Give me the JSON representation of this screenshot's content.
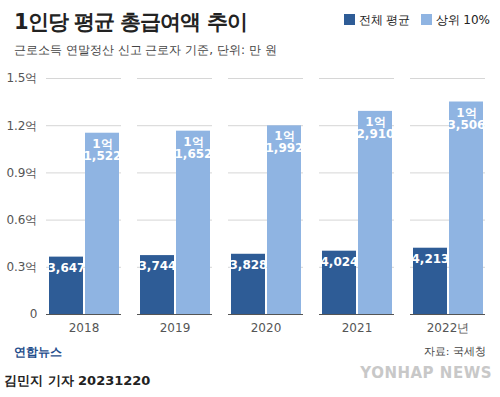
{
  "chart_data": {
    "type": "bar",
    "title": "1인당 평균 총급여액 추이",
    "subtitle": "근로소득 연말정산 신고 근로자 기준, 단위: 만 원",
    "categories": [
      "2018",
      "2019",
      "2020",
      "2021",
      "2022년"
    ],
    "series": [
      {
        "name": "전체 평균",
        "color": "#2e5c96",
        "values": [
          3647,
          3744,
          3828,
          4024,
          4213
        ],
        "value_labels": [
          "3,647",
          "3,744",
          "3,828",
          "4,024",
          "4,213"
        ]
      },
      {
        "name": "상위 10%",
        "color": "#8fb4e2",
        "values": [
          11522,
          11652,
          11992,
          12910,
          13506
        ],
        "value_labels": [
          "1억\n1,522",
          "1억\n1,652",
          "1억\n1,992",
          "1억\n2,910",
          "1억\n3,506"
        ]
      }
    ],
    "ylim": [
      0,
      15000
    ],
    "yticks": [
      0,
      {
        "value": 3000,
        "label": "0.3억"
      },
      {
        "value": 6000,
        "label": "0.6억"
      },
      {
        "value": 9000,
        "label": "0.9억"
      },
      {
        "value": 12000,
        "label": "1.2억"
      },
      {
        "value": 15000,
        "label": "1.5억"
      }
    ],
    "grid": true,
    "data_labels": true,
    "legend": "top-right",
    "source": "자료: 국세청",
    "agency": "연합뉴스",
    "byline": "김민지 기자 20231220",
    "watermark": "YONHAP NEWS"
  }
}
